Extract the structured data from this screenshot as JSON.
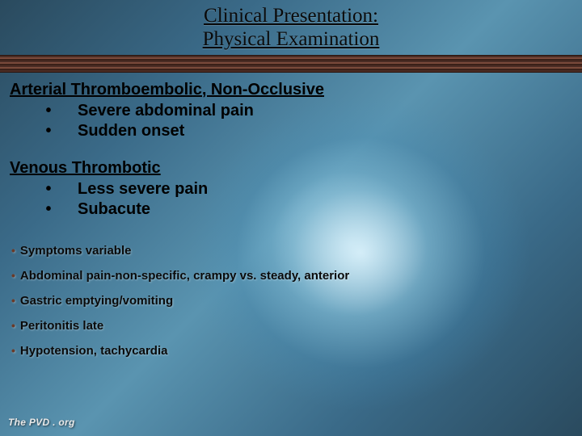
{
  "colors": {
    "text_main": "#000000",
    "small_bullet": "#6a3a28",
    "footer_text": "#e8e8e8",
    "stripe_dark": "#3a2018",
    "stripe_mid": "#4a2c24",
    "stripe_light": "#7a4a3a",
    "bg_grad_a": "#2a4a5e",
    "bg_grad_b": "#3a6a88",
    "bg_grad_c": "#5a94b0"
  },
  "typography": {
    "title_family": "Times New Roman",
    "body_family": "Arial",
    "title_size_pt": 19,
    "section_heading_size_pt": 15,
    "large_bullet_size_pt": 15,
    "small_bullet_size_pt": 11,
    "footer_size_pt": 9
  },
  "title": {
    "line1": "Clinical Presentation:",
    "line2": "Physical Examination"
  },
  "sections": [
    {
      "heading": "Arterial Thromboembolic, Non-Occlusive",
      "items": [
        "Severe abdominal pain",
        "Sudden onset"
      ]
    },
    {
      "heading": "Venous Thrombotic",
      "items": [
        "Less severe pain",
        "Subacute"
      ]
    }
  ],
  "small_points": [
    "Symptoms variable",
    "Abdominal pain-non-specific, crampy vs. steady, anterior",
    "Gastric emptying/vomiting",
    "Peritonitis late",
    "Hypotension, tachycardia"
  ],
  "footer": "The PVD . org"
}
